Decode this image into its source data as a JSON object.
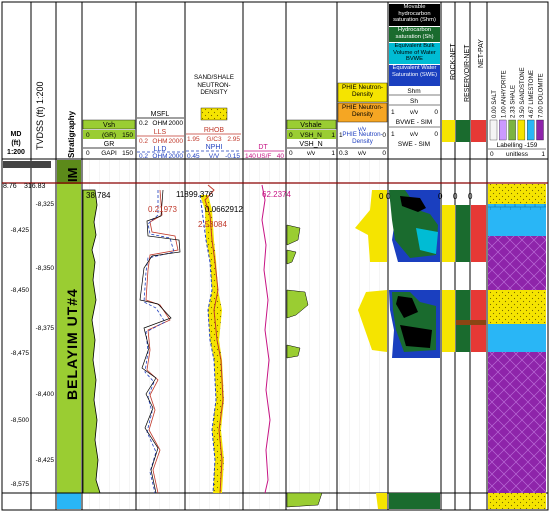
{
  "tracks": {
    "md": {
      "line1": "MD",
      "line2": "(ft)",
      "line3": "1:200"
    },
    "tvdss": {
      "label": "TVDSS (ft) 1:200"
    },
    "strat": {
      "label": "Stratigraphy",
      "zone": "BELAYIM UT#4",
      "top_zone": "IM"
    },
    "gr": {
      "fill_label": "Vsh",
      "scale_row": [
        "0",
        "(GR)",
        "150"
      ],
      "curve": "GR",
      "unit_row": [
        "0",
        "GAPI",
        "150"
      ],
      "colors": {
        "fill": "#9acd32",
        "curve": "#000000"
      }
    },
    "res": {
      "msfl": "MSFL",
      "msfl_scale": [
        "0.2",
        "OHM",
        "2000"
      ],
      "lls": "LLS",
      "lls_scale": [
        "0.2",
        "OHM",
        "2000"
      ],
      "lld": "LLD",
      "lld_scale": [
        "0.2",
        "OHM",
        "2000"
      ],
      "colors": {
        "msfl": "#000000",
        "lls": "#c0392b",
        "lld": "#1f3fbf"
      }
    },
    "dn": {
      "title": "SAND/SHALE NEUTRON-DENSITY",
      "rhob": "RHOB",
      "rhob_scale": [
        "1.95",
        "G/C3",
        "2.95"
      ],
      "nphi": "NPHI",
      "nphi_scale": [
        "0.45",
        "V/V",
        "-0.15"
      ],
      "colors": {
        "rhob": "#c0392b",
        "nphi": "#1f3fbf",
        "sand": "#f5e400"
      }
    },
    "dt": {
      "label": "DT",
      "scale": [
        "140",
        "US/F",
        "40"
      ],
      "color": "#c71585"
    },
    "vsh": {
      "label": "Vshale",
      "scale_row": [
        "0",
        "VSH_N",
        "1"
      ],
      "curve": "VSH_N",
      "unit_row": [
        "0",
        "v/v",
        "1"
      ],
      "color": "#9acd32"
    },
    "phie": {
      "labels": [
        "PHIE Neutron-Density",
        "PHIE Neutron-Density"
      ],
      "scale_row": [
        "1",
        "v/v",
        "0"
      ],
      "label3": "PHIE Neutron-Density",
      "unit_row": [
        "0.3",
        "v/v",
        "0"
      ],
      "colors": {
        "first": "#f5e400",
        "second": "#f5a623"
      }
    },
    "sat": {
      "labels": [
        "Movable hydrocarbon saturation (Shm)",
        "Hydrocarbon saturation (Sh)",
        "Equivalent Bulk Volume of Water BVWE",
        "Equivalent Water Saturation (SWE)"
      ],
      "rows": [
        [
          "Shm"
        ],
        [
          "Sh"
        ],
        [
          "1",
          "v/v",
          "0"
        ],
        [
          "BVWE - SIM"
        ],
        [
          "1",
          "v/v",
          "0"
        ],
        [
          "SWE - SIM"
        ]
      ],
      "colors": {
        "shm": "#000000",
        "sh": "#1a6b2e",
        "bvwe": "#00bcd4",
        "swe": "#1a3fbf"
      }
    },
    "flags": {
      "rock": "ROCK-NET",
      "reservoir": "RESERVOIR-NET",
      "pay": "NET-PAY"
    },
    "lith": {
      "legend": [
        {
          "value": "0.00",
          "name": "SALT",
          "color": "#f4f4f4"
        },
        {
          "value": "1.00",
          "name": "ANHYDRITE",
          "color": "#cc99ff"
        },
        {
          "value": "2.33",
          "name": "SHALE",
          "color": "#7cb342"
        },
        {
          "value": "3.50",
          "name": "SANDSTONE",
          "color": "#f5e400"
        },
        {
          "value": "4.67",
          "name": "LIMESTONE",
          "color": "#29b6f6"
        },
        {
          "value": "7.00",
          "name": "DOLOMITE",
          "color": "#8e24aa"
        }
      ],
      "label": "Labelling -159",
      "scale_row": [
        "0",
        "unitless",
        "1"
      ]
    }
  },
  "depth": {
    "md_labels": [
      {
        "text": "-8,325",
        "depth": 8325
      },
      {
        "text": "-8,350",
        "depth": 8350
      },
      {
        "text": "-8,375",
        "depth": 8375
      },
      {
        "text": "-8,400",
        "depth": 8400
      },
      {
        "text": "-8,425",
        "depth": 8425
      }
    ],
    "tvdss_labels": [
      {
        "text": "-8,425",
        "depth": 8425
      },
      {
        "text": "-8,450",
        "depth": 8450
      },
      {
        "text": "-8,475",
        "depth": 8475
      },
      {
        "text": "-8,500",
        "depth": 8500
      },
      {
        "text": "-8,575",
        "depth": 8575
      }
    ],
    "top_md": "8.76",
    "top_tvdss": "316.83"
  },
  "readouts": [
    {
      "text": "38.784",
      "color": "#000000"
    },
    {
      "text": "0.21973",
      "color": "#c0392b"
    },
    {
      "text": "11899.376",
      "color": "#000000"
    },
    {
      "text": "0.0662912",
      "color": "#000000"
    },
    {
      "text": "2.53084",
      "color": "#c0392b"
    },
    {
      "text": "62.2374",
      "color": "#c71585"
    },
    {
      "text": "0",
      "color": "#000000"
    },
    {
      "text": "0",
      "color": "#000000"
    },
    {
      "text": "0",
      "color": "#000000"
    },
    {
      "text": "0",
      "color": "#000000"
    },
    {
      "text": "0",
      "color": "#000000"
    }
  ]
}
